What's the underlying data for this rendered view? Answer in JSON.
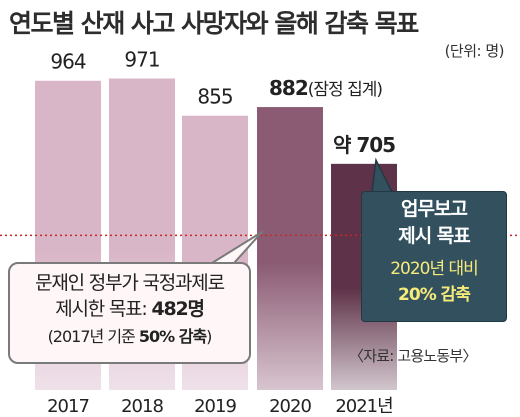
{
  "title": "연도별 산재 사고 사망자와 올해 감축 목표",
  "unit_label": "(단위: 명)",
  "source": "〈자료: 고용노동부〉",
  "chart_data": {
    "type": "bar",
    "categories": [
      "2017",
      "2018",
      "2019",
      "2020",
      "2021년"
    ],
    "values": [
      964,
      971,
      855,
      882,
      705
    ],
    "value_labels": [
      "964",
      "971",
      "855",
      "882",
      "705"
    ],
    "value_prefix": [
      "",
      "",
      "",
      "",
      "약 "
    ],
    "value_suffix": [
      "",
      "",
      "",
      "(잠정 집계)",
      ""
    ],
    "reference_line": {
      "value": 482
    },
    "colors": {
      "past": "#d9b6c7",
      "past_fade": "#efe1e9",
      "y2020": "#8b5b74",
      "y2020_fade": "#d8c5cf",
      "y2021": "#5e3248",
      "y2021_fade": "#d2c6cd",
      "reference": "#c62828"
    }
  },
  "callout_left": {
    "line1": "문재인 정부가 국정과제로",
    "line2_prefix": "제시한 목표: ",
    "line2_bold": "482명",
    "line3_prefix": "(2017년 기준 ",
    "line3_bold": "50% 감축",
    "line3_suffix": ")"
  },
  "callout_right": {
    "line1": "업무보고",
    "line2": "제시 목표",
    "line3": "2020년 대비",
    "line4": "20% 감축"
  }
}
